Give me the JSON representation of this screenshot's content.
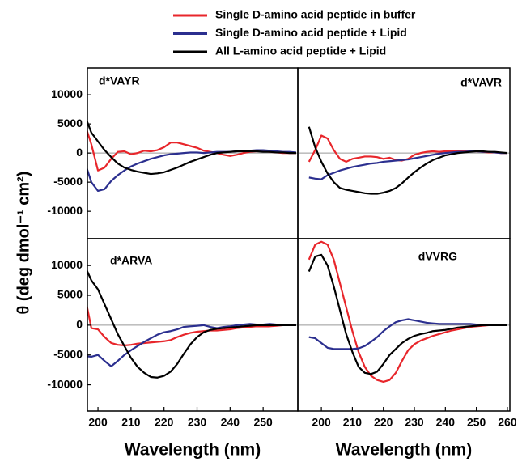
{
  "chart_data": {
    "type": "line",
    "ylabel": "θ (deg dmol⁻¹ cm²)",
    "series": [
      {
        "name": "Single D-amino acid peptide in buffer",
        "color": "#e8262b"
      },
      {
        "name": "Single D-amino acid peptide + Lipid",
        "color": "#2b2f8f"
      },
      {
        "name": "All L-amino acid peptide + Lipid",
        "color": "#000000"
      }
    ],
    "x": [
      196,
      198,
      200,
      202,
      204,
      206,
      208,
      210,
      212,
      214,
      216,
      218,
      220,
      222,
      224,
      226,
      228,
      230,
      232,
      234,
      236,
      238,
      240,
      242,
      244,
      246,
      248,
      250,
      252,
      254,
      256,
      258,
      260
    ],
    "panels": [
      {
        "label": "d*VAYR",
        "xlim": [
          196.8,
          260.5
        ],
        "ylim": [
          -14700,
          14600
        ],
        "yticks": [
          -10000,
          -5000,
          0,
          5000,
          10000
        ],
        "series": [
          {
            "values": [
              5000,
              1500,
              -3000,
              -2500,
              -1000,
              200,
              300,
              -200,
              0,
              400,
              300,
              500,
              1000,
              1800,
              1800,
              1500,
              1200,
              900,
              400,
              200,
              0,
              -300,
              -500,
              -300,
              0,
              200,
              300,
              300,
              200,
              100,
              0,
              0,
              0
            ]
          },
          {
            "values": [
              -1500,
              -5000,
              -6500,
              -6200,
              -4800,
              -3800,
              -3000,
              -2300,
              -1800,
              -1400,
              -1000,
              -700,
              -400,
              -200,
              -100,
              0,
              100,
              100,
              0,
              100,
              200,
              200,
              200,
              300,
              400,
              400,
              500,
              500,
              400,
              300,
              200,
              200,
              100
            ]
          },
          {
            "values": [
              6500,
              3500,
              2000,
              500,
              -700,
              -1800,
              -2500,
              -2900,
              -3200,
              -3400,
              -3600,
              -3500,
              -3300,
              -2900,
              -2500,
              -2000,
              -1500,
              -1100,
              -700,
              -300,
              0,
              100,
              200,
              300,
              300,
              300,
              300,
              200,
              200,
              100,
              100,
              0,
              0
            ]
          }
        ]
      },
      {
        "label": "d*VAVR",
        "xlim": [
          192.4,
          260.8
        ],
        "ylim": [
          -14700,
          14600
        ],
        "series": [
          {
            "values": [
              -1500,
              500,
              3000,
              2500,
              500,
              -1000,
              -1500,
              -1000,
              -800,
              -600,
              -600,
              -700,
              -1000,
              -800,
              -1200,
              -1300,
              -1000,
              -300,
              0,
              200,
              300,
              200,
              300,
              300,
              400,
              400,
              300,
              300,
              200,
              100,
              100,
              0,
              0
            ]
          },
          {
            "values": [
              -4200,
              -4400,
              -4500,
              -3800,
              -3400,
              -3000,
              -2700,
              -2400,
              -2200,
              -2000,
              -1800,
              -1700,
              -1500,
              -1400,
              -1300,
              -1200,
              -1100,
              -900,
              -700,
              -500,
              -300,
              -100,
              0,
              100,
              200,
              200,
              300,
              300,
              200,
              200,
              100,
              0,
              0
            ]
          },
          {
            "values": [
              4500,
              1000,
              -1500,
              -3500,
              -5000,
              -6000,
              -6300,
              -6500,
              -6700,
              -6900,
              -7000,
              -7000,
              -6800,
              -6500,
              -6000,
              -5200,
              -4200,
              -3300,
              -2500,
              -1800,
              -1200,
              -800,
              -400,
              -200,
              0,
              100,
              200,
              300,
              300,
              200,
              200,
              100,
              0
            ]
          }
        ]
      },
      {
        "label": "d*ARVA",
        "xlim": [
          196.8,
          260.5
        ],
        "ylim": [
          -14400,
          14500
        ],
        "yticks": [
          -10000,
          -5000,
          0,
          5000,
          10000
        ],
        "xticks": [
          200,
          210,
          220,
          230,
          240,
          250
        ],
        "xlabel": "Wavelength (nm)",
        "series": [
          {
            "values": [
              5000,
              -500,
              -700,
              -2000,
              -3000,
              -3300,
              -3400,
              -3300,
              -3100,
              -3000,
              -2900,
              -2800,
              -2700,
              -2500,
              -2000,
              -1600,
              -1300,
              -1100,
              -1000,
              -900,
              -900,
              -800,
              -700,
              -500,
              -400,
              -300,
              -200,
              -200,
              -200,
              -100,
              0,
              0,
              0
            ]
          },
          {
            "values": [
              -5200,
              -5300,
              -5000,
              -6000,
              -6900,
              -6000,
              -5000,
              -4200,
              -3500,
              -2800,
              -2200,
              -1600,
              -1200,
              -1000,
              -700,
              -300,
              -200,
              -100,
              0,
              -300,
              -500,
              -300,
              -200,
              0,
              100,
              200,
              100,
              100,
              200,
              100,
              100,
              0,
              0
            ]
          },
          {
            "values": [
              10000,
              7500,
              6000,
              3500,
              1000,
              -1500,
              -3500,
              -5500,
              -7000,
              -8000,
              -8700,
              -8800,
              -8500,
              -7800,
              -6500,
              -4800,
              -3200,
              -2000,
              -1200,
              -800,
              -600,
              -500,
              -400,
              -300,
              -200,
              -100,
              0,
              0,
              0,
              0,
              0,
              0,
              0
            ]
          }
        ]
      },
      {
        "label": "dVVRG",
        "xlim": [
          192.4,
          260.8
        ],
        "ylim": [
          -14400,
          14500
        ],
        "xticks": [
          200,
          210,
          220,
          230,
          240,
          250,
          260
        ],
        "xlabel": "Wavelength (nm)",
        "series": [
          {
            "values": [
              11000,
              13500,
              14000,
              13500,
              11000,
              7000,
              3000,
              -1000,
              -4500,
              -7000,
              -8500,
              -9200,
              -9500,
              -9200,
              -8000,
              -6000,
              -4200,
              -3200,
              -2600,
              -2200,
              -1800,
              -1500,
              -1200,
              -900,
              -700,
              -500,
              -300,
              -200,
              -100,
              0,
              0,
              0,
              0
            ]
          },
          {
            "values": [
              -2000,
              -2200,
              -3000,
              -3800,
              -4000,
              -4000,
              -4000,
              -4000,
              -3900,
              -3500,
              -2800,
              -2000,
              -1000,
              -200,
              500,
              800,
              1000,
              800,
              600,
              400,
              300,
              200,
              200,
              200,
              200,
              200,
              200,
              100,
              100,
              100,
              0,
              0,
              0
            ]
          },
          {
            "values": [
              9000,
              11500,
              11800,
              10000,
              6500,
              2500,
              -1500,
              -4500,
              -7000,
              -8000,
              -8200,
              -7800,
              -6500,
              -5000,
              -4000,
              -3000,
              -2300,
              -1800,
              -1500,
              -1300,
              -1000,
              -900,
              -800,
              -600,
              -400,
              -300,
              -200,
              -100,
              0,
              0,
              0,
              0,
              0
            ]
          }
        ]
      }
    ]
  }
}
